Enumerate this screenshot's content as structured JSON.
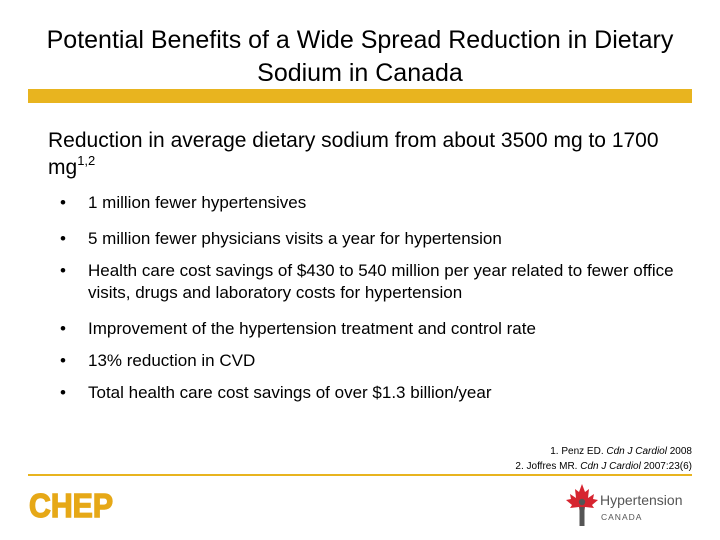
{
  "slide": {
    "title": "Potential Benefits of a Wide Spread Reduction in Dietary Sodium in Canada",
    "intro_text": "Reduction in average dietary sodium from about 3500 mg to 1700 mg",
    "intro_superscript": "1,2",
    "bullets": [
      "1 million fewer hypertensives",
      "5 million fewer physicians visits a year for hypertension",
      "Health care cost savings of $430 to 540 million per year related to fewer office visits, drugs and laboratory costs for hypertension",
      "Improvement of the hypertension treatment and control rate",
      "13% reduction in CVD",
      "Total health care cost savings of over $1.3 billion/year"
    ],
    "bullet_glyph": "•"
  },
  "references": [
    {
      "prefix": "1. Penz ED. ",
      "journal": "Cdn J Cardiol",
      "suffix": " 2008"
    },
    {
      "prefix": "2. Joffres MR. ",
      "journal": "Cdn J Cardiol",
      "suffix": " 2007:23(6)"
    }
  ],
  "logos": {
    "chep_text": "CHEP",
    "hypertension_text": "Hypertension",
    "canada_text": "CANADA"
  },
  "colors": {
    "accent_gold": "#e8b41f",
    "chep_gold": "#e6a817",
    "maple_red": "#d6242f",
    "logo_gray": "#555555"
  }
}
